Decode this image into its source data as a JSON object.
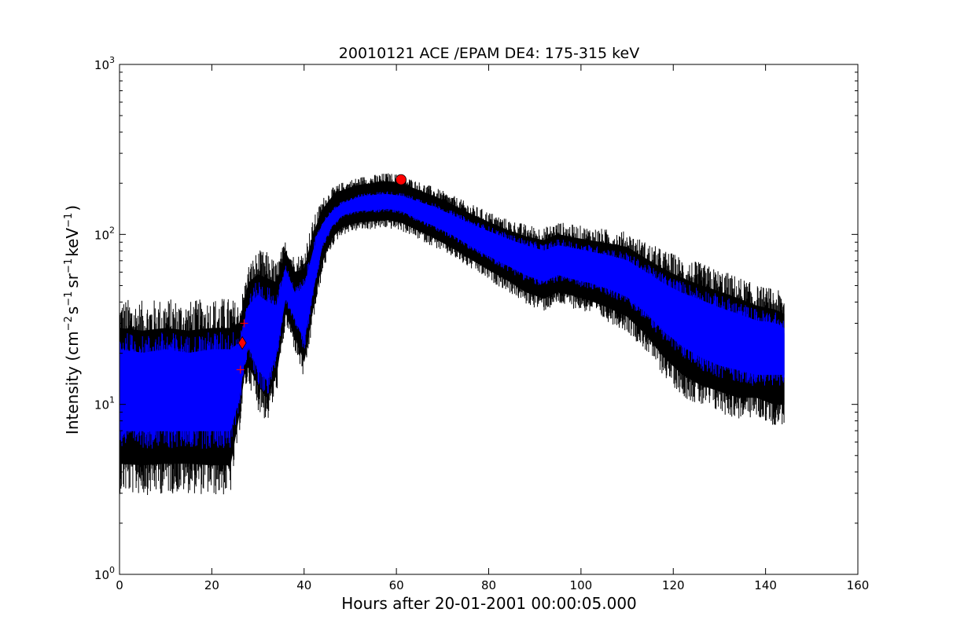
{
  "chart_data": {
    "type": "line",
    "title": "20010121 ACE /EPAM DE4: 175-315 keV",
    "xlabel": "Hours after 20-01-2001 00:00:05.000",
    "ylabel_parts": {
      "lead": "Intensity (cm",
      "exp1": "−2",
      "s": "s",
      "exp2": "−1",
      "sr": "sr",
      "exp3": "−1",
      "kev": "keV",
      "exp4": "−1",
      "tail": ")"
    },
    "xscale": "linear",
    "yscale": "log",
    "xlim": [
      0,
      160
    ],
    "ylim": [
      1,
      1000
    ],
    "xticks": [
      0,
      20,
      40,
      60,
      80,
      100,
      120,
      140,
      160
    ],
    "xtick_labels": [
      "0",
      "20",
      "40",
      "60",
      "80",
      "100",
      "120",
      "140",
      "160"
    ],
    "yticks": [
      1,
      10,
      100,
      1000
    ],
    "ytick_labels": [
      {
        "base": "10",
        "exp": "0"
      },
      {
        "base": "10",
        "exp": "1"
      },
      {
        "base": "10",
        "exp": "2"
      },
      {
        "base": "10",
        "exp": "3"
      }
    ],
    "grid": false,
    "colors": {
      "error_band": "#000000",
      "series": "#0000ff",
      "markers": "#ff0000"
    },
    "series": [
      {
        "role": "error-band",
        "x": [
          0,
          5,
          10,
          15,
          20,
          24,
          26,
          27,
          28,
          30,
          32,
          34,
          36,
          38,
          40,
          42,
          44,
          46,
          48,
          50,
          52,
          55,
          58,
          61,
          64,
          68,
          72,
          76,
          80,
          84,
          88,
          92,
          95,
          98,
          102,
          106,
          110,
          114,
          118,
          122,
          126,
          130,
          134,
          138,
          142,
          144
        ],
        "upper": [
          28,
          27,
          28,
          27,
          28,
          28,
          30,
          40,
          52,
          58,
          55,
          52,
          78,
          60,
          62,
          100,
          140,
          165,
          180,
          188,
          195,
          200,
          205,
          200,
          185,
          168,
          150,
          132,
          118,
          106,
          97,
          92,
          100,
          96,
          92,
          88,
          84,
          72,
          62,
          55,
          50,
          46,
          42,
          38,
          36,
          34
        ],
        "lower": [
          4.5,
          4.4,
          4.5,
          4.5,
          4.4,
          4.4,
          9,
          15,
          17,
          13,
          11,
          15,
          35,
          25,
          18,
          38,
          70,
          95,
          110,
          115,
          118,
          120,
          122,
          118,
          108,
          96,
          84,
          72,
          62,
          54,
          46,
          42,
          46,
          44,
          41,
          37,
          33,
          26,
          19,
          15,
          13,
          12,
          11,
          11,
          10,
          10
        ]
      },
      {
        "role": "intensity",
        "x": [
          0,
          5,
          10,
          15,
          20,
          24,
          26,
          27,
          28,
          30,
          32,
          34,
          36,
          38,
          40,
          42,
          44,
          46,
          48,
          50,
          52,
          55,
          58,
          61,
          64,
          68,
          72,
          76,
          80,
          84,
          88,
          92,
          95,
          98,
          102,
          106,
          110,
          114,
          118,
          122,
          126,
          130,
          134,
          138,
          142,
          144
        ],
        "upper": [
          21,
          20,
          21,
          20,
          21,
          21,
          23,
          30,
          38,
          44,
          40,
          38,
          62,
          45,
          48,
          80,
          115,
          135,
          150,
          158,
          165,
          170,
          172,
          168,
          158,
          145,
          130,
          115,
          104,
          94,
          86,
          80,
          86,
          83,
          79,
          75,
          70,
          60,
          51,
          45,
          41,
          37,
          34,
          31,
          30,
          28
        ],
        "lower": [
          7,
          7,
          7,
          7,
          7,
          7,
          11,
          18,
          22,
          16,
          14,
          20,
          43,
          32,
          24,
          48,
          88,
          112,
          128,
          135,
          138,
          140,
          142,
          138,
          126,
          113,
          100,
          86,
          75,
          66,
          58,
          53,
          58,
          55,
          52,
          48,
          43,
          35,
          27,
          22,
          19,
          17,
          16,
          15,
          15,
          15
        ]
      }
    ],
    "markers": [
      {
        "shape": "plus",
        "x": 26.2,
        "y": 16
      },
      {
        "shape": "diamond",
        "x": 26.6,
        "y": 23
      },
      {
        "shape": "plus",
        "x": 27.0,
        "y": 30
      },
      {
        "shape": "circle",
        "x": 61,
        "y": 210
      }
    ]
  }
}
